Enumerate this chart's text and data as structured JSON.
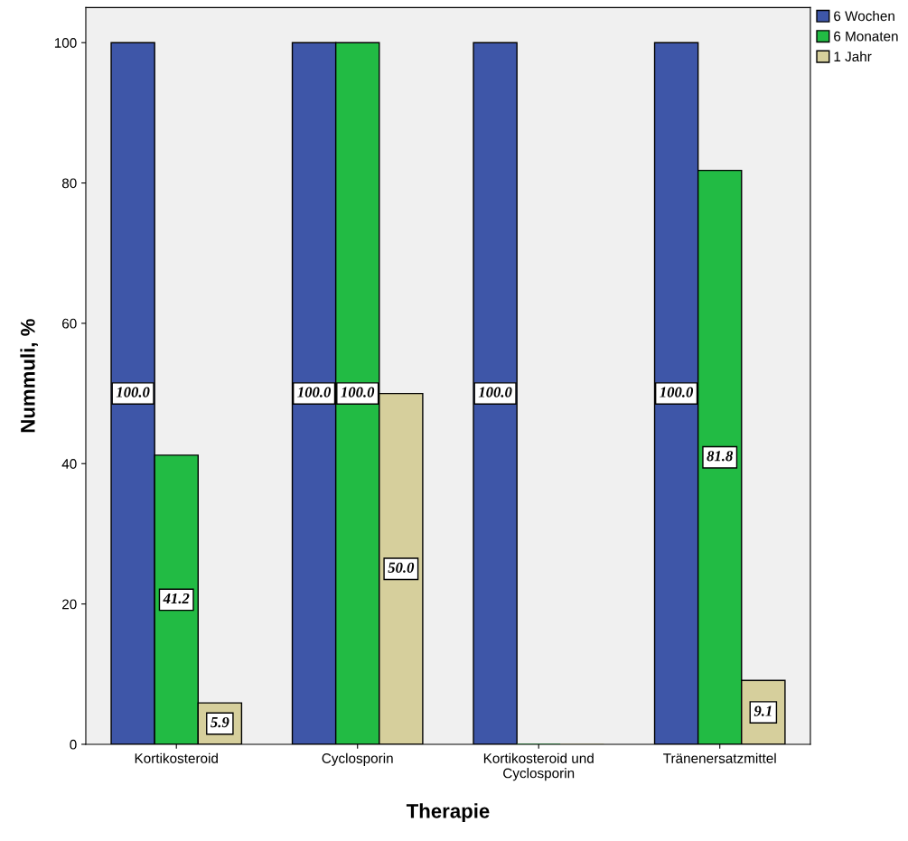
{
  "chart_data": {
    "type": "bar",
    "xlabel": "Therapie",
    "ylabel": "Nummuli, %",
    "categories": [
      "Kortikosteroid",
      "Cyclosporin",
      "Kortikosteroid und\nCyclosporin",
      "Tränenersatzmittel"
    ],
    "series": [
      {
        "name": "6 Wochen",
        "color": "#3e56a8",
        "values": [
          100,
          100,
          100,
          100
        ],
        "value_labels": [
          "100.0",
          "100.0",
          "100.0",
          "100.0"
        ]
      },
      {
        "name": "6 Monaten",
        "color": "#22bb44",
        "values": [
          41.2,
          100,
          0,
          81.8
        ],
        "value_labels": [
          "41.2",
          "100.0",
          null,
          "81.8"
        ]
      },
      {
        "name": "1 Jahr",
        "color": "#d6cf9c",
        "values": [
          5.9,
          50,
          0,
          9.1
        ],
        "value_labels": [
          "5.9",
          "50.0",
          null,
          "9.1"
        ]
      }
    ],
    "ylim": [
      0,
      105
    ],
    "yticks": [
      0,
      20,
      40,
      60,
      80,
      100
    ],
    "grid": false,
    "legend": "top right"
  }
}
